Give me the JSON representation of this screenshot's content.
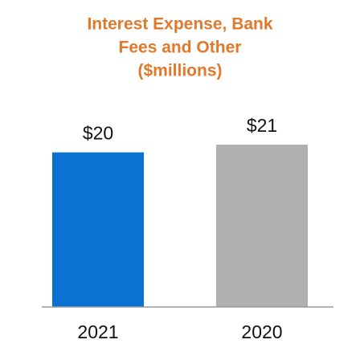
{
  "chart_data": {
    "type": "bar",
    "title": [
      "Interest Expense, Bank",
      "Fees and Other",
      "($millions)"
    ],
    "categories": [
      "2021",
      "2020"
    ],
    "values": [
      20,
      21
    ],
    "value_labels": [
      "$20",
      "$21"
    ],
    "colors": [
      "#0a72d3",
      "#b0b0b0"
    ]
  }
}
